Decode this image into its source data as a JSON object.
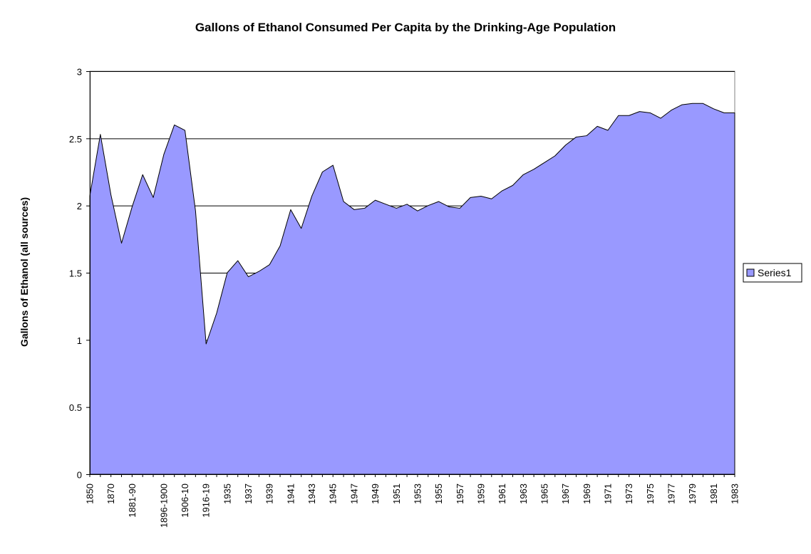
{
  "chart_data": {
    "type": "area",
    "title": "Gallons of Ethanol Consumed Per Capita by the Drinking-Age Population",
    "xlabel": "",
    "ylabel": "Gallons of Ethanol (all sources)",
    "ylim": [
      0,
      3
    ],
    "yticks": [
      0,
      0.5,
      1,
      1.5,
      2,
      2.5,
      3
    ],
    "yticklabels": [
      "0",
      "0.5",
      "1",
      "1.5",
      "2",
      "2.5",
      "3"
    ],
    "grid": true,
    "legend_position": "right",
    "colors": {
      "fill": "#9999ff",
      "stroke": "#000000",
      "plot_bg": "#ffffff"
    },
    "categories": [
      "1850",
      "1860",
      "1870",
      "1871-80",
      "1881-90",
      "1886-90",
      "1891-95",
      "1896-1900",
      "1901-05",
      "1906-10",
      "1911-15",
      "1916-19",
      "1934",
      "1935",
      "1936",
      "1937",
      "1938",
      "1939",
      "1940",
      "1941",
      "1942",
      "1943",
      "1944",
      "1945",
      "1946",
      "1947",
      "1948",
      "1949",
      "1950",
      "1951",
      "1952",
      "1953",
      "1954",
      "1955",
      "1956",
      "1957",
      "1958",
      "1959",
      "1960",
      "1961",
      "1962",
      "1963",
      "1964",
      "1965",
      "1966",
      "1967",
      "1968",
      "1969",
      "1970",
      "1971",
      "1972",
      "1973",
      "1974",
      "1975",
      "1976",
      "1977",
      "1978",
      "1979",
      "1980",
      "1981",
      "1982",
      "1983"
    ],
    "category_labels_shown": [
      "1850",
      "1870",
      "1881-90",
      "1896-1900",
      "1906-10",
      "1916-19",
      "1935",
      "1937",
      "1939",
      "1941",
      "1943",
      "1945",
      "1947",
      "1949",
      "1951",
      "1953",
      "1955",
      "1957",
      "1959",
      "1961",
      "1963",
      "1965",
      "1967",
      "1969",
      "1971",
      "1973",
      "1975",
      "1977",
      "1979",
      "1981",
      "1983"
    ],
    "series": [
      {
        "name": "Series1",
        "values": [
          2.07,
          2.53,
          2.08,
          1.72,
          1.99,
          2.23,
          2.06,
          2.38,
          2.6,
          2.56,
          1.96,
          0.97,
          1.2,
          1.5,
          1.59,
          1.47,
          1.51,
          1.56,
          1.7,
          1.97,
          1.83,
          2.07,
          2.25,
          2.3,
          2.03,
          1.97,
          1.98,
          2.04,
          2.01,
          1.98,
          2.01,
          1.96,
          2.0,
          2.03,
          1.99,
          1.98,
          2.06,
          2.07,
          2.05,
          2.11,
          2.15,
          2.23,
          2.27,
          2.32,
          2.37,
          2.45,
          2.51,
          2.52,
          2.59,
          2.56,
          2.67,
          2.67,
          2.7,
          2.69,
          2.65,
          2.71,
          2.75,
          2.76,
          2.76,
          2.72,
          2.69,
          2.69
        ]
      }
    ]
  }
}
